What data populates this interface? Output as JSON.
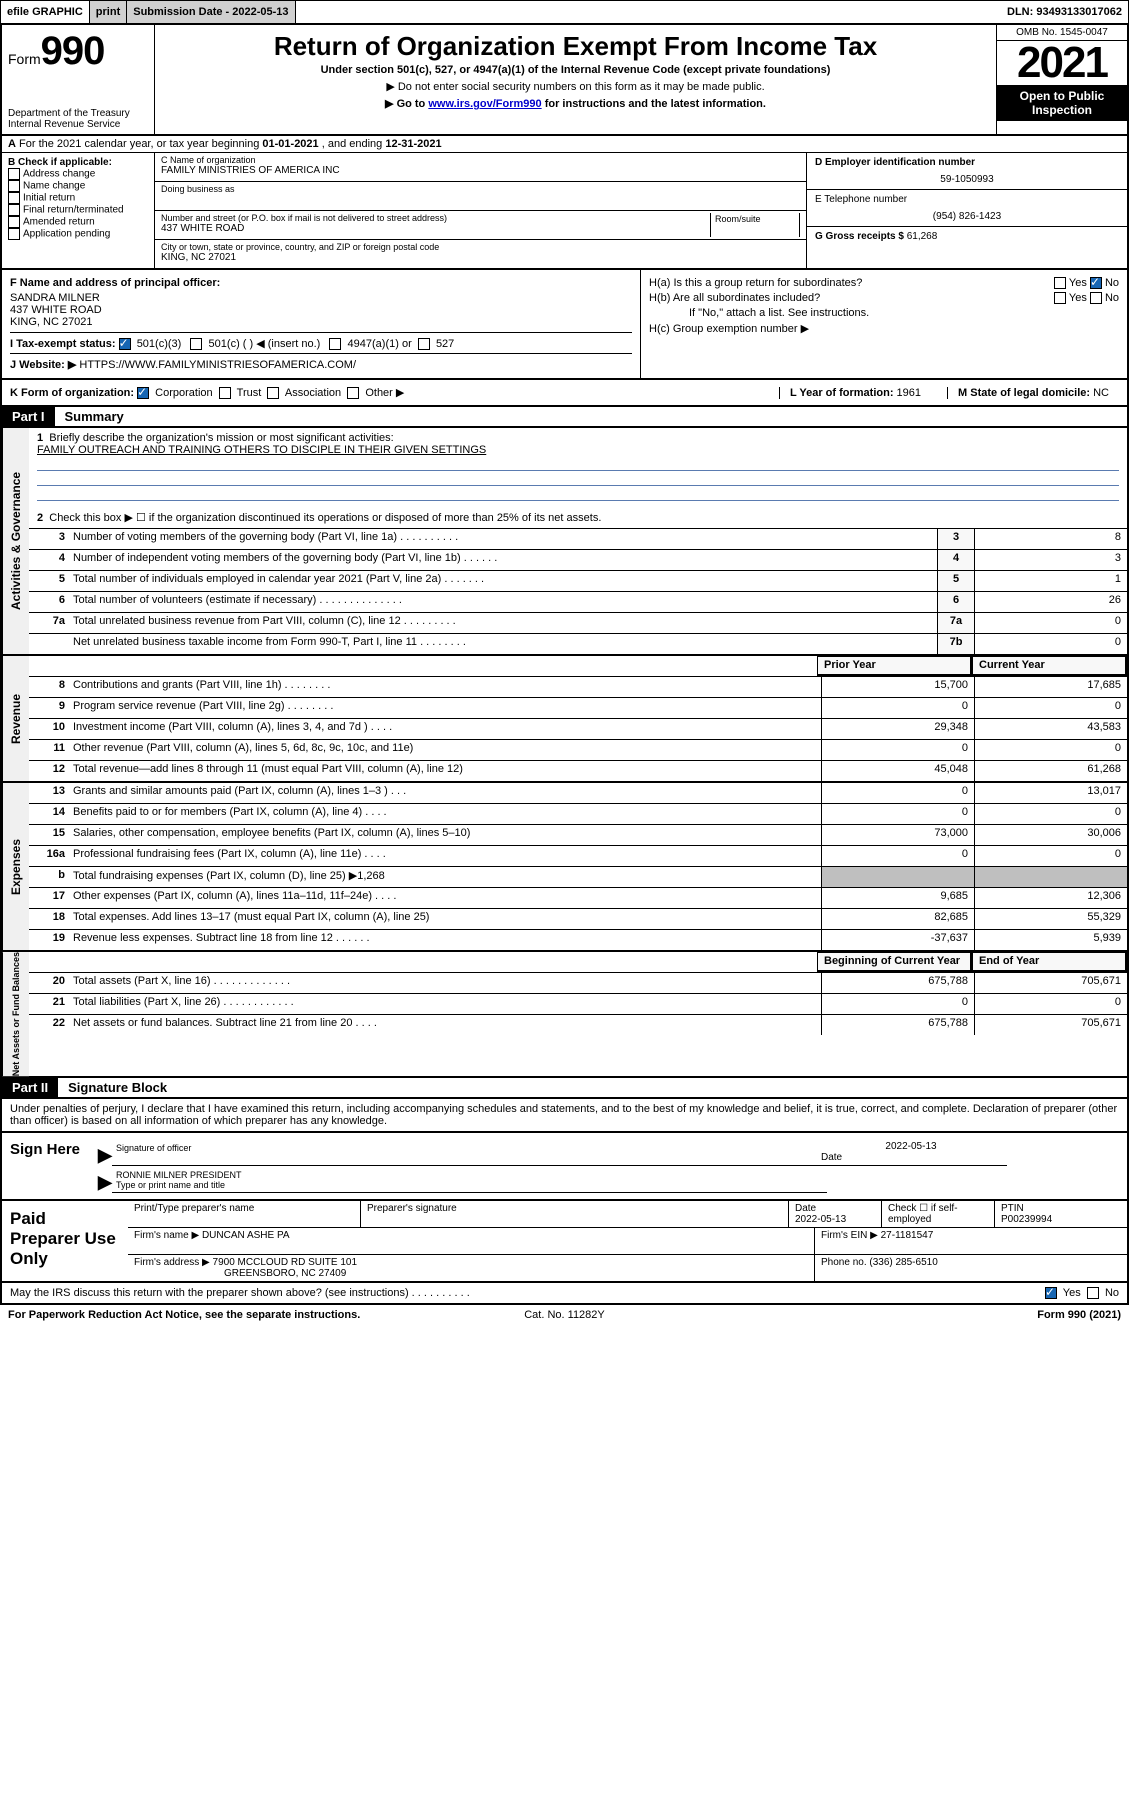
{
  "topbar": {
    "efile": "efile GRAPHIC",
    "print": "print",
    "subdate_label": "Submission Date - 2022-05-13",
    "dln": "DLN: 93493133017062"
  },
  "header": {
    "form_prefix": "Form",
    "form_number": "990",
    "dept": "Department of the Treasury",
    "irs": "Internal Revenue Service",
    "title": "Return of Organization Exempt From Income Tax",
    "sub1": "Under section 501(c), 527, or 4947(a)(1) of the Internal Revenue Code (except private foundations)",
    "sub2": "▶ Do not enter social security numbers on this form as it may be made public.",
    "sub3_pre": "▶ Go to ",
    "sub3_link": "www.irs.gov/Form990",
    "sub3_post": " for instructions and the latest information.",
    "omb": "OMB No. 1545-0047",
    "year": "2021",
    "inspection": "Open to Public Inspection"
  },
  "row_a": {
    "label": "A",
    "text_pre": "For the 2021 calendar year, or tax year beginning ",
    "begin": "01-01-2021",
    "mid": " , and ending ",
    "end": "12-31-2021"
  },
  "col_b": {
    "label": "B Check if applicable:",
    "items": [
      "Address change",
      "Name change",
      "Initial return",
      "Final return/terminated",
      "Amended return",
      "Application pending"
    ]
  },
  "col_c": {
    "name_lbl": "C Name of organization",
    "name": "FAMILY MINISTRIES OF AMERICA INC",
    "dba_lbl": "Doing business as",
    "street_lbl": "Number and street (or P.O. box if mail is not delivered to street address)",
    "room_lbl": "Room/suite",
    "street": "437 WHITE ROAD",
    "city_lbl": "City or town, state or province, country, and ZIP or foreign postal code",
    "city": "KING, NC  27021"
  },
  "col_de": {
    "d_lbl": "D Employer identification number",
    "d_val": "59-1050993",
    "e_lbl": "E Telephone number",
    "e_val": "(954) 826-1423",
    "g_lbl": "G Gross receipts $ ",
    "g_val": "61,268"
  },
  "sec_f": {
    "f_lbl": "F  Name and address of principal officer:",
    "f_name": "SANDRA MILNER",
    "f_street": "437 WHITE ROAD",
    "f_city": "KING, NC  27021",
    "i_lbl": "I   Tax-exempt status:",
    "i_501c3": "501(c)(3)",
    "i_501c": "501(c) (  ) ◀ (insert no.)",
    "i_4947": "4947(a)(1) or",
    "i_527": "527",
    "j_lbl": "J   Website: ▶",
    "j_val": "HTTPS://WWW.FAMILYMINISTRIESOFAMERICA.COM/"
  },
  "sec_h": {
    "ha": "H(a)  Is this a group return for subordinates?",
    "hb": "H(b)  Are all subordinates included?",
    "hb_note": "If \"No,\" attach a list. See instructions.",
    "hc": "H(c)  Group exemption number ▶",
    "yes": "Yes",
    "no": "No"
  },
  "row_k": {
    "k_lbl": "K Form of organization:",
    "corp": "Corporation",
    "trust": "Trust",
    "assoc": "Association",
    "other": "Other ▶",
    "l_lbl": "L Year of formation: ",
    "l_val": "1961",
    "m_lbl": "M State of legal domicile: ",
    "m_val": "NC"
  },
  "part1": {
    "label": "Part I",
    "title": "Summary",
    "q1_lbl": "1",
    "q1": "Briefly describe the organization's mission or most significant activities:",
    "q1_val": "FAMILY OUTREACH AND TRAINING OTHERS TO DISCIPLE IN THEIR GIVEN SETTINGS",
    "q2_lbl": "2",
    "q2": "Check this box ▶ ☐  if the organization discontinued its operations or disposed of more than 25% of its net assets."
  },
  "gov_rows": [
    {
      "n": "3",
      "t": "Number of voting members of the governing body (Part VI, line 1a)   .    .    .    .    .    .    .    .    .    .",
      "nc": "3",
      "v": "8"
    },
    {
      "n": "4",
      "t": "Number of independent voting members of the governing body (Part VI, line 1b)   .    .    .    .    .    .",
      "nc": "4",
      "v": "3"
    },
    {
      "n": "5",
      "t": "Total number of individuals employed in calendar year 2021 (Part V, line 2a)   .    .    .    .    .    .    .",
      "nc": "5",
      "v": "1"
    },
    {
      "n": "6",
      "t": "Total number of volunteers (estimate if necessary)   .    .    .    .    .    .    .    .    .    .    .    .    .    .",
      "nc": "6",
      "v": "26"
    },
    {
      "n": "7a",
      "t": "Total unrelated business revenue from Part VIII, column (C), line 12   .    .    .    .    .    .    .    .    .",
      "nc": "7a",
      "v": "0"
    },
    {
      "n": "",
      "t": "Net unrelated business taxable income from Form 990-T, Part I, line 11   .    .    .    .    .    .    .    .",
      "nc": "7b",
      "v": "0"
    }
  ],
  "vtab_gov": "Activities & Governance",
  "col_hdr_prior": "Prior Year",
  "col_hdr_curr": "Current Year",
  "vtab_rev": "Revenue",
  "rev_rows": [
    {
      "n": "8",
      "t": "Contributions and grants (Part VIII, line 1h)   .    .    .    .    .    .    .    .",
      "p": "15,700",
      "c": "17,685"
    },
    {
      "n": "9",
      "t": "Program service revenue (Part VIII, line 2g)   .    .    .    .    .    .    .    .",
      "p": "0",
      "c": "0"
    },
    {
      "n": "10",
      "t": "Investment income (Part VIII, column (A), lines 3, 4, and 7d )   .    .    .    .",
      "p": "29,348",
      "c": "43,583"
    },
    {
      "n": "11",
      "t": "Other revenue (Part VIII, column (A), lines 5, 6d, 8c, 9c, 10c, and 11e)",
      "p": "0",
      "c": "0"
    },
    {
      "n": "12",
      "t": "Total revenue—add lines 8 through 11 (must equal Part VIII, column (A), line 12)",
      "p": "45,048",
      "c": "61,268"
    }
  ],
  "vtab_exp": "Expenses",
  "exp_rows": [
    {
      "n": "13",
      "t": "Grants and similar amounts paid (Part IX, column (A), lines 1–3 )   .    .    .",
      "p": "0",
      "c": "13,017"
    },
    {
      "n": "14",
      "t": "Benefits paid to or for members (Part IX, column (A), line 4)   .    .    .    .",
      "p": "0",
      "c": "0"
    },
    {
      "n": "15",
      "t": "Salaries, other compensation, employee benefits (Part IX, column (A), lines 5–10)",
      "p": "73,000",
      "c": "30,006"
    },
    {
      "n": "16a",
      "t": "Professional fundraising fees (Part IX, column (A), line 11e)   .    .    .    .",
      "p": "0",
      "c": "0"
    },
    {
      "n": "b",
      "t": "Total fundraising expenses (Part IX, column (D), line 25) ▶1,268",
      "grey": true
    },
    {
      "n": "17",
      "t": "Other expenses (Part IX, column (A), lines 11a–11d, 11f–24e)   .    .    .    .",
      "p": "9,685",
      "c": "12,306"
    },
    {
      "n": "18",
      "t": "Total expenses. Add lines 13–17 (must equal Part IX, column (A), line 25)",
      "p": "82,685",
      "c": "55,329"
    },
    {
      "n": "19",
      "t": "Revenue less expenses. Subtract line 18 from line 12   .    .    .    .    .    .",
      "p": "-37,637",
      "c": "5,939"
    }
  ],
  "vtab_net": "Net Assets or Fund Balances",
  "net_hdr_beg": "Beginning of Current Year",
  "net_hdr_end": "End of Year",
  "net_rows": [
    {
      "n": "20",
      "t": "Total assets (Part X, line 16)   .    .    .    .    .    .    .    .    .    .    .    .    .",
      "p": "675,788",
      "c": "705,671"
    },
    {
      "n": "21",
      "t": "Total liabilities (Part X, line 26)   .    .    .    .    .    .    .    .    .    .    .    .",
      "p": "0",
      "c": "0"
    },
    {
      "n": "22",
      "t": "Net assets or fund balances. Subtract line 21 from line 20   .    .    .    .",
      "p": "675,788",
      "c": "705,671"
    }
  ],
  "part2": {
    "label": "Part II",
    "title": "Signature Block",
    "intro": "Under penalties of perjury, I declare that I have examined this return, including accompanying schedules and statements, and to the best of my knowledge and belief, it is true, correct, and complete. Declaration of preparer (other than officer) is based on all information of which preparer has any knowledge."
  },
  "sign": {
    "label": "Sign Here",
    "sig_lbl": "Signature of officer",
    "date_lbl": "Date",
    "date_val": "2022-05-13",
    "name": "RONNIE MILNER  PRESIDENT",
    "name_lbl": "Type or print name and title"
  },
  "prep": {
    "label": "Paid Preparer Use Only",
    "col1": "Print/Type preparer's name",
    "col2": "Preparer's signature",
    "col3_lbl": "Date",
    "col3_val": "2022-05-13",
    "col4_lbl": "Check ☐ if self-employed",
    "col5_lbl": "PTIN",
    "col5_val": "P00239994",
    "firm_name_lbl": "Firm's name     ▶",
    "firm_name": "DUNCAN ASHE PA",
    "firm_ein_lbl": "Firm's EIN ▶",
    "firm_ein": "27-1181547",
    "firm_addr_lbl": "Firm's address ▶",
    "firm_addr1": "7900 MCCLOUD RD SUITE 101",
    "firm_addr2": "GREENSBORO, NC  27409",
    "phone_lbl": "Phone no. ",
    "phone": "(336) 285-6510"
  },
  "footer": {
    "discuss": "May the IRS discuss this return with the preparer shown above? (see instructions)   .    .    .    .    .    .    .    .    .    .",
    "yes": "Yes",
    "no": "No",
    "paperwork": "For Paperwork Reduction Act Notice, see the separate instructions.",
    "cat": "Cat. No. 11282Y",
    "formno": "Form 990 (2021)"
  }
}
